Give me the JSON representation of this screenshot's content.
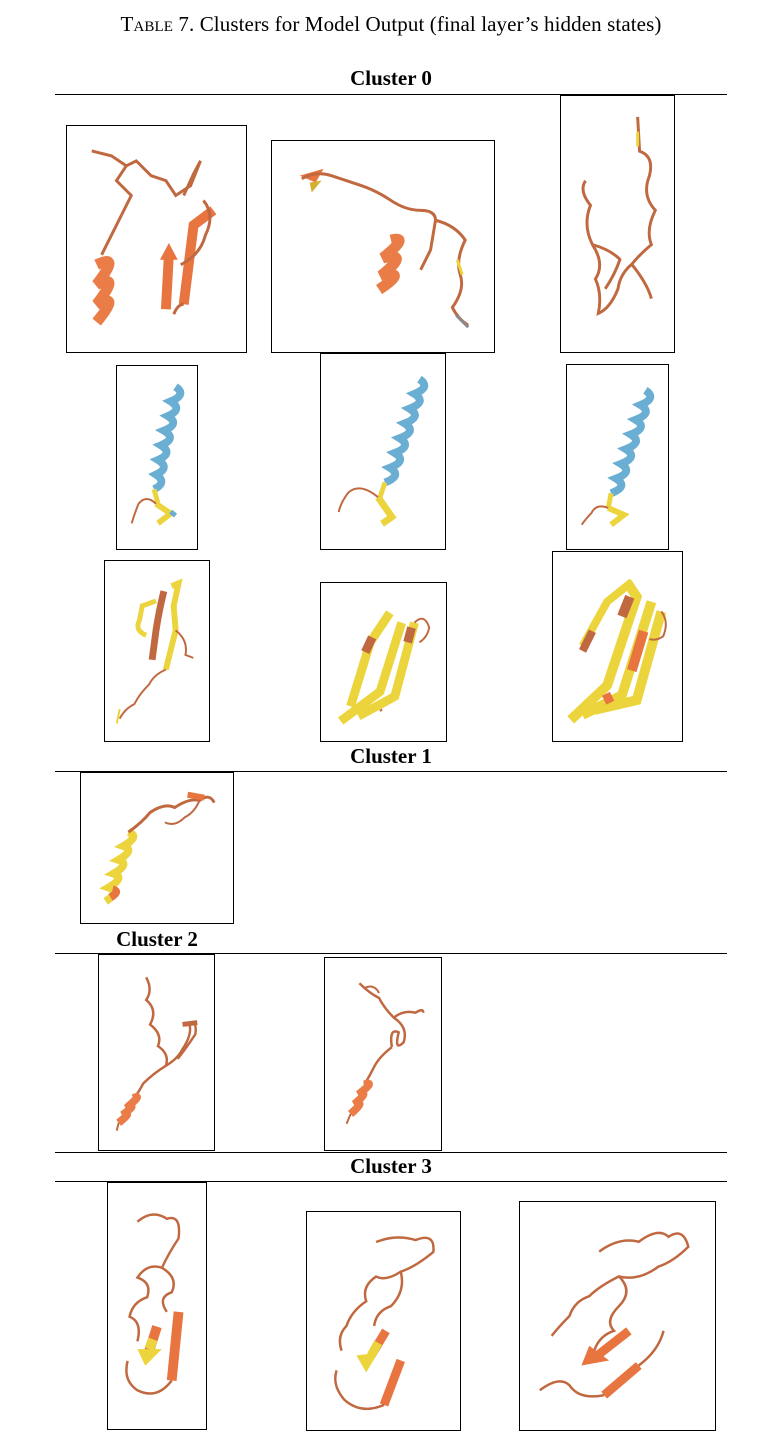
{
  "caption": {
    "label": "Table 7.",
    "text": "Clusters for Model Output (final layer’s hidden states)"
  },
  "clusters": [
    {
      "title": "Cluster 0"
    },
    {
      "title": "Cluster 1"
    },
    {
      "title": "Cluster 2"
    },
    {
      "title": "Cluster 3"
    }
  ],
  "colors": {
    "coil": "#c0683f",
    "coil_light": "#d9805a",
    "strand_orange": "#e8743f",
    "helix_orange": "#ea7c47",
    "helix_blue": "#6aaed3",
    "strand_yellow": "#ecd43c",
    "terminus_gray": "#8a8a8a"
  }
}
